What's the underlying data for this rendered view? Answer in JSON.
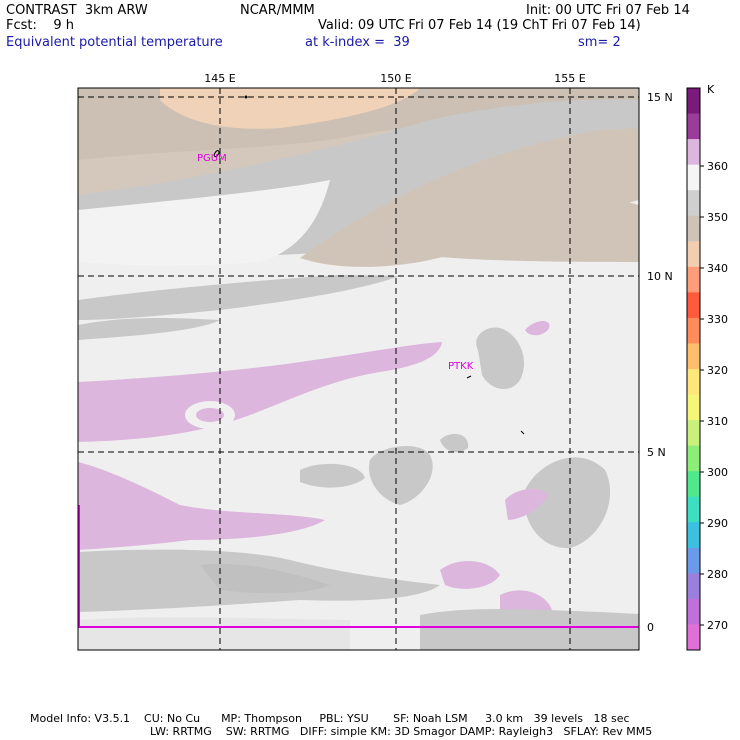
{
  "header": {
    "left_line1": "CONTRAST  3km ARW",
    "left_line2": "Fcst:    9 h",
    "center_line1": "NCAR/MMM",
    "right_line1": "Init: 00 UTC Fri 07 Feb 14",
    "right_line2": "Valid: 09 UTC Fri 07 Feb 14 (19 ChT Fri 07 Feb 14)",
    "field": "Equivalent potential temperature",
    "level": "at k-index =  39",
    "smooth": "sm= 2"
  },
  "map": {
    "lon_labels": [
      "145 E",
      "150 E",
      "155 E"
    ],
    "lat_labels": [
      "15 N",
      "10 N",
      "5 N",
      "0"
    ],
    "stations": [
      "PGUM",
      "PTKK"
    ]
  },
  "colorbar": {
    "unit": "K",
    "tick_labels": [
      "360",
      "350",
      "340",
      "330",
      "320",
      "310",
      "300",
      "290",
      "280",
      "270"
    ],
    "colors": [
      "#7a1a7a",
      "#9a3c9a",
      "#dcb6dc",
      "#f5f5f5",
      "#cfcfcf",
      "#cfc3b8",
      "#f2cdb0",
      "#ff9d7a",
      "#ff5a3c",
      "#ff8c5a",
      "#ffbe6e",
      "#ffe67a",
      "#f5f57a",
      "#c8f07a",
      "#8cee78",
      "#50e88c",
      "#3ce0c0",
      "#3cc0e0",
      "#6a9ae8",
      "#9a80dc",
      "#c070d8",
      "#e070d8"
    ]
  },
  "footer": {
    "line1": "Model Info: V3.5.1    CU: No Cu      MP: Thompson     PBL: YSU       SF: Noah LSM     3.0 km   39 levels   18 sec",
    "line2": "LW: RRTMG    SW: RRTMG   DIFF: simple KM: 3D Smagor DAMP: Rayleigh3   SFLAY: Rev MM5"
  }
}
